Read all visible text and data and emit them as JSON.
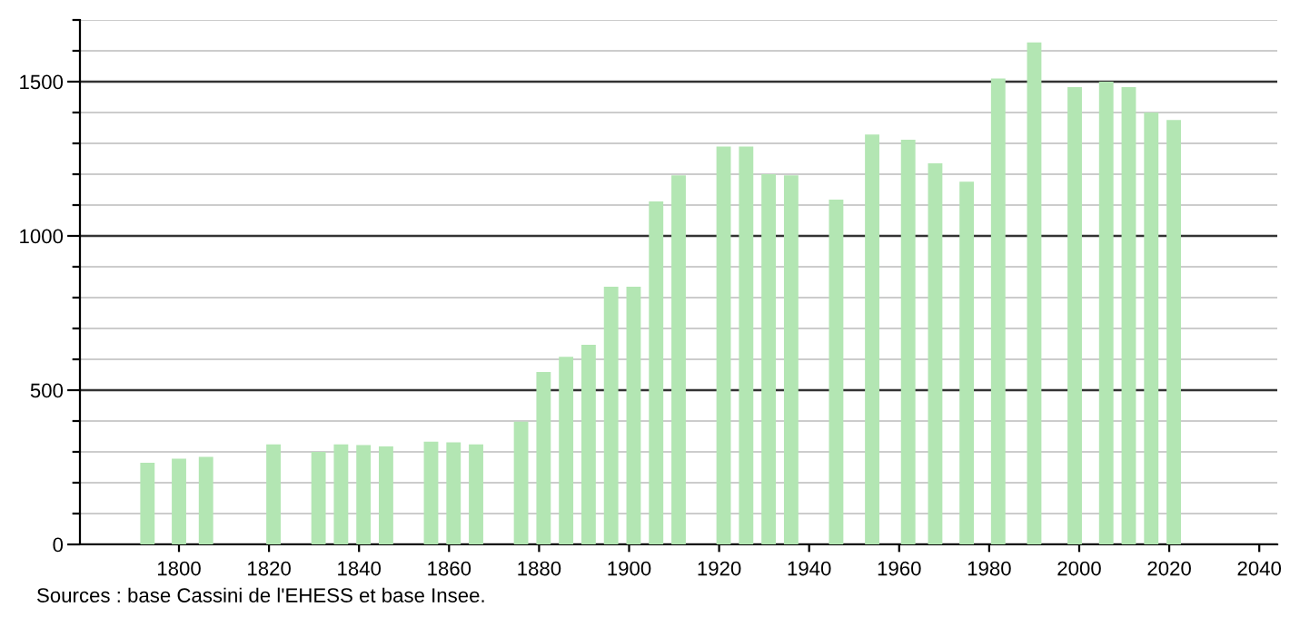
{
  "chart_data": {
    "type": "bar",
    "x": [
      1793,
      1800,
      1806,
      1821,
      1831,
      1836,
      1841,
      1846,
      1856,
      1861,
      1866,
      1876,
      1881,
      1886,
      1891,
      1896,
      1901,
      1906,
      1911,
      1921,
      1926,
      1931,
      1936,
      1946,
      1954,
      1962,
      1968,
      1975,
      1982,
      1990,
      1999,
      2006,
      2011,
      2016,
      2021
    ],
    "values": [
      265,
      278,
      284,
      324,
      300,
      324,
      322,
      318,
      333,
      331,
      324,
      398,
      559,
      608,
      647,
      835,
      835,
      1112,
      1196,
      1290,
      1290,
      1200,
      1196,
      1118,
      1329,
      1312,
      1235,
      1176,
      1510,
      1627,
      1482,
      1500,
      1482,
      1400,
      1376
    ],
    "color": "#b3e6b3",
    "xlim": [
      1778,
      2044
    ],
    "xticks": [
      1800,
      1820,
      1840,
      1860,
      1880,
      1900,
      1920,
      1940,
      1960,
      1980,
      2000,
      2020,
      2040
    ],
    "ylim": [
      0,
      1700
    ],
    "yticks": [
      0,
      {
        "value": 100,
        "label": null
      },
      {
        "value": 200,
        "label": null
      },
      {
        "value": 300,
        "label": null
      },
      {
        "value": 400,
        "label": null
      },
      500,
      {
        "value": 600,
        "label": null
      },
      {
        "value": 700,
        "label": null
      },
      {
        "value": 800,
        "label": null
      },
      {
        "value": 900,
        "label": null
      },
      1000,
      {
        "value": 1100,
        "label": null
      },
      {
        "value": 1200,
        "label": null
      },
      {
        "value": 1300,
        "label": null
      },
      {
        "value": 1400,
        "label": null
      },
      1500,
      {
        "value": 1600,
        "label": null
      },
      {
        "value": 1700,
        "label": null
      }
    ],
    "grid": "y",
    "annotations": [
      "Sources : base Cassini de l'EHESS et base Insee."
    ]
  }
}
